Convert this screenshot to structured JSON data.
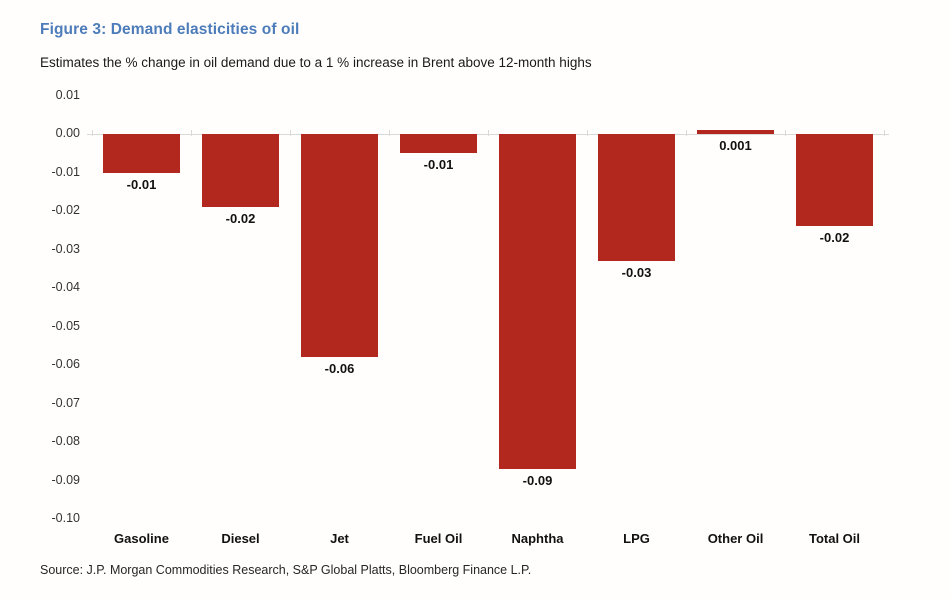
{
  "figure": {
    "title": "Figure 3: Demand elasticities of oil",
    "subtitle": "Estimates the % change in oil demand due to a 1 % increase in Brent above 12-month highs"
  },
  "source": "Source: J.P. Morgan Commodities Research, S&P Global Platts, Bloomberg Finance L.P.",
  "colors": {
    "title_blue": "#4d7cba",
    "bar_red": "#b2271e",
    "axis_line_gray": "#d9d9d9",
    "text_dark": "#111111"
  },
  "chart_data": {
    "type": "bar",
    "title": "Figure 3: Demand elasticities of oil",
    "subtitle": "Estimates the % change in oil demand due to a 1 % increase in Brent above 12-month highs",
    "categories": [
      "Gasoline",
      "Diesel",
      "Jet",
      "Fuel Oil",
      "Naphtha",
      "LPG",
      "Other Oil",
      "Total Oil"
    ],
    "values": [
      -0.01,
      -0.02,
      -0.06,
      -0.01,
      -0.09,
      -0.03,
      0.001,
      -0.02
    ],
    "value_labels": [
      "-0.01",
      "-0.02",
      "-0.06",
      "-0.01",
      "-0.09",
      "-0.03",
      "0.001",
      "-0.02"
    ],
    "bar_depths_precise": [
      -0.01,
      -0.019,
      -0.058,
      -0.005,
      -0.087,
      -0.033,
      0.001,
      -0.024
    ],
    "bar_color": "#b2271e",
    "ylim": [
      -0.1,
      0.01
    ],
    "ytick_step": 0.01,
    "ytick_labels": [
      "0.01",
      "0.00",
      "-0.01",
      "-0.02",
      "-0.03",
      "-0.04",
      "-0.05",
      "-0.06",
      "-0.07",
      "-0.08",
      "-0.09",
      "-0.10"
    ],
    "xlabel": "",
    "ylabel": "",
    "grid": false,
    "legend": false,
    "value_labels_position": "below-bar"
  }
}
